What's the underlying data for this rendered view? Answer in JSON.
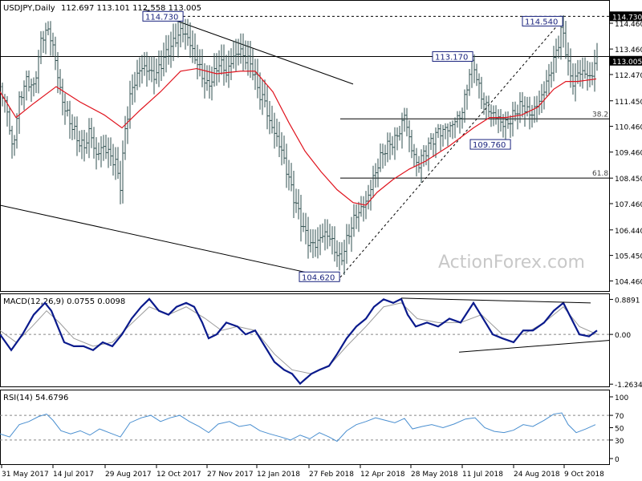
{
  "header": {
    "symbol": "USDJPY,Daily",
    "ohlc": "112.697 113.101 112.558 113.005"
  },
  "watermark": "ActionForex.com",
  "colors": {
    "bar": "#2f4f4f",
    "ema": "#e0141e",
    "macd": "#0a1a8c",
    "signal": "#9a9a9a",
    "rsi": "#4a8fd0",
    "label_border": "#1a237e",
    "axis": "#000000",
    "current_badge": "#000000"
  },
  "chart_data": [
    {
      "type": "ohlc",
      "name": "price",
      "y_axis_ticks": [
        "114.460",
        "113.460",
        "112.470",
        "111.450",
        "110.460",
        "109.460",
        "108.450",
        "107.460",
        "106.440",
        "105.450",
        "104.460"
      ],
      "ylim": [
        104.1,
        115.3
      ],
      "badges": {
        "top": "114.730",
        "current": "113.005"
      },
      "level_labels": [
        "114.730",
        "113.170",
        "114.540",
        "109.760",
        "104.620"
      ],
      "fib_labels": [
        "38.2",
        "61.8"
      ],
      "path": [
        [
          0,
          112.0
        ],
        [
          8,
          111.2
        ],
        [
          16,
          109.5
        ],
        [
          24,
          111.5
        ],
        [
          34,
          112.3
        ],
        [
          42,
          111.9
        ],
        [
          50,
          113.6
        ],
        [
          58,
          114.3
        ],
        [
          66,
          113.6
        ],
        [
          74,
          112.0
        ],
        [
          80,
          111.2
        ],
        [
          88,
          110.6
        ],
        [
          96,
          110.0
        ],
        [
          104,
          109.6
        ],
        [
          112,
          110.3
        ],
        [
          120,
          109.3
        ],
        [
          128,
          109.7
        ],
        [
          136,
          109.4
        ],
        [
          144,
          109.0
        ],
        [
          150,
          108.2
        ],
        [
          156,
          110.3
        ],
        [
          162,
          111.6
        ],
        [
          170,
          112.4
        ],
        [
          178,
          112.8
        ],
        [
          186,
          112.6
        ],
        [
          194,
          112.4
        ],
        [
          202,
          113.0
        ],
        [
          210,
          113.4
        ],
        [
          218,
          113.8
        ],
        [
          226,
          114.2
        ],
        [
          234,
          113.9
        ],
        [
          242,
          113.2
        ],
        [
          250,
          112.6
        ],
        [
          258,
          112.0
        ],
        [
          266,
          112.4
        ],
        [
          274,
          113.0
        ],
        [
          282,
          112.5
        ],
        [
          290,
          113.1
        ],
        [
          298,
          113.4
        ],
        [
          306,
          113.1
        ],
        [
          314,
          112.8
        ],
        [
          322,
          111.8
        ],
        [
          330,
          111.4
        ],
        [
          336,
          110.6
        ],
        [
          344,
          110.1
        ],
        [
          352,
          109.4
        ],
        [
          360,
          108.4
        ],
        [
          368,
          107.5
        ],
        [
          376,
          106.7
        ],
        [
          384,
          106.0
        ],
        [
          392,
          105.8
        ],
        [
          400,
          106.2
        ],
        [
          408,
          106.3
        ],
        [
          416,
          105.8
        ],
        [
          424,
          105.2
        ],
        [
          432,
          106.0
        ],
        [
          440,
          106.8
        ],
        [
          448,
          107.2
        ],
        [
          456,
          107.5
        ],
        [
          464,
          108.3
        ],
        [
          472,
          109.1
        ],
        [
          480,
          109.6
        ],
        [
          488,
          109.8
        ],
        [
          496,
          110.1
        ],
        [
          504,
          110.9
        ],
        [
          512,
          109.7
        ],
        [
          520,
          108.9
        ],
        [
          528,
          109.4
        ],
        [
          536,
          109.8
        ],
        [
          544,
          110.2
        ],
        [
          552,
          110.3
        ],
        [
          560,
          110.4
        ],
        [
          568,
          110.7
        ],
        [
          576,
          111.0
        ],
        [
          584,
          112.4
        ],
        [
          590,
          113.0
        ],
        [
          596,
          112.0
        ],
        [
          604,
          111.3
        ],
        [
          612,
          111.0
        ],
        [
          620,
          110.8
        ],
        [
          628,
          110.5
        ],
        [
          636,
          110.7
        ],
        [
          644,
          111.1
        ],
        [
          652,
          111.3
        ],
        [
          660,
          110.9
        ],
        [
          668,
          111.2
        ],
        [
          676,
          111.7
        ],
        [
          684,
          112.4
        ],
        [
          692,
          113.2
        ],
        [
          700,
          114.3
        ],
        [
          706,
          113.3
        ],
        [
          712,
          112.1
        ],
        [
          718,
          112.4
        ],
        [
          724,
          112.6
        ],
        [
          730,
          112.5
        ],
        [
          736,
          112.3
        ],
        [
          742,
          113.0
        ]
      ],
      "ema_path": [
        [
          0,
          111.8
        ],
        [
          20,
          110.8
        ],
        [
          40,
          111.3
        ],
        [
          70,
          112.0
        ],
        [
          100,
          111.4
        ],
        [
          130,
          110.9
        ],
        [
          152,
          110.4
        ],
        [
          175,
          111.1
        ],
        [
          200,
          111.8
        ],
        [
          225,
          112.6
        ],
        [
          245,
          112.7
        ],
        [
          270,
          112.5
        ],
        [
          300,
          112.6
        ],
        [
          318,
          112.6
        ],
        [
          340,
          111.8
        ],
        [
          360,
          110.6
        ],
        [
          380,
          109.5
        ],
        [
          400,
          108.7
        ],
        [
          420,
          108.0
        ],
        [
          440,
          107.5
        ],
        [
          456,
          107.4
        ],
        [
          470,
          107.9
        ],
        [
          490,
          108.4
        ],
        [
          510,
          108.8
        ],
        [
          530,
          109.1
        ],
        [
          560,
          109.7
        ],
        [
          590,
          110.4
        ],
        [
          610,
          110.8
        ],
        [
          630,
          110.8
        ],
        [
          650,
          110.9
        ],
        [
          670,
          111.2
        ],
        [
          690,
          111.9
        ],
        [
          705,
          112.2
        ],
        [
          720,
          112.2
        ],
        [
          743,
          112.3
        ]
      ],
      "lines": [
        {
          "kind": "trend",
          "from": [
            180,
            115.0
          ],
          "to": [
            440,
            112.1
          ]
        },
        {
          "kind": "trend",
          "from": [
            0,
            107.4
          ],
          "to": [
            424,
            104.5
          ]
        },
        {
          "kind": "trend-dashed",
          "from": [
            424,
            104.6
          ],
          "to": [
            698,
            114.5
          ]
        },
        {
          "kind": "horizontal-dashed",
          "y": 114.73,
          "from": 180,
          "to": 760
        },
        {
          "kind": "horizontal",
          "y": 113.17,
          "from": 0,
          "to": 760
        },
        {
          "kind": "horizontal",
          "y": 110.75,
          "from": 424,
          "to": 760
        },
        {
          "kind": "horizontal",
          "y": 108.45,
          "from": 424,
          "to": 760
        }
      ]
    },
    {
      "type": "line",
      "name": "macd",
      "title": "MACD(12,26,9) 0.0755 0.0098",
      "y_axis_ticks": [
        "0.8891",
        "0.00",
        "-1.2634"
      ],
      "ylim": [
        -1.3,
        1.0
      ],
      "macd_path": [
        [
          0,
          0.0
        ],
        [
          14,
          -0.4
        ],
        [
          28,
          0.0
        ],
        [
          42,
          0.5
        ],
        [
          56,
          0.8
        ],
        [
          64,
          0.6
        ],
        [
          72,
          0.2
        ],
        [
          80,
          -0.2
        ],
        [
          92,
          -0.3
        ],
        [
          104,
          -0.3
        ],
        [
          116,
          -0.4
        ],
        [
          128,
          -0.2
        ],
        [
          140,
          -0.3
        ],
        [
          152,
          0.0
        ],
        [
          164,
          0.4
        ],
        [
          176,
          0.7
        ],
        [
          186,
          0.9
        ],
        [
          198,
          0.6
        ],
        [
          210,
          0.5
        ],
        [
          220,
          0.7
        ],
        [
          232,
          0.8
        ],
        [
          242,
          0.7
        ],
        [
          252,
          0.3
        ],
        [
          260,
          -0.1
        ],
        [
          270,
          0.0
        ],
        [
          282,
          0.3
        ],
        [
          296,
          0.2
        ],
        [
          306,
          0.0
        ],
        [
          318,
          0.1
        ],
        [
          330,
          -0.3
        ],
        [
          342,
          -0.7
        ],
        [
          354,
          -0.9
        ],
        [
          364,
          -1.0
        ],
        [
          374,
          -1.25
        ],
        [
          388,
          -1.0
        ],
        [
          398,
          -0.9
        ],
        [
          410,
          -0.8
        ],
        [
          420,
          -0.5
        ],
        [
          432,
          -0.1
        ],
        [
          444,
          0.2
        ],
        [
          456,
          0.4
        ],
        [
          466,
          0.7
        ],
        [
          478,
          0.89
        ],
        [
          490,
          0.8
        ],
        [
          500,
          0.9
        ],
        [
          508,
          0.5
        ],
        [
          518,
          0.2
        ],
        [
          532,
          0.3
        ],
        [
          546,
          0.2
        ],
        [
          560,
          0.4
        ],
        [
          574,
          0.3
        ],
        [
          590,
          0.8
        ],
        [
          602,
          0.4
        ],
        [
          614,
          0.0
        ],
        [
          626,
          -0.1
        ],
        [
          640,
          -0.2
        ],
        [
          652,
          0.1
        ],
        [
          664,
          0.1
        ],
        [
          678,
          0.3
        ],
        [
          690,
          0.6
        ],
        [
          702,
          0.8
        ],
        [
          712,
          0.4
        ],
        [
          722,
          0.0
        ],
        [
          734,
          -0.05
        ],
        [
          744,
          0.1
        ]
      ],
      "signal_path": [
        [
          0,
          0.1
        ],
        [
          20,
          -0.2
        ],
        [
          40,
          0.2
        ],
        [
          58,
          0.6
        ],
        [
          74,
          0.3
        ],
        [
          92,
          -0.1
        ],
        [
          116,
          -0.3
        ],
        [
          140,
          -0.2
        ],
        [
          160,
          0.2
        ],
        [
          186,
          0.7
        ],
        [
          210,
          0.5
        ],
        [
          232,
          0.7
        ],
        [
          256,
          0.4
        ],
        [
          276,
          0.1
        ],
        [
          296,
          0.2
        ],
        [
          318,
          0.1
        ],
        [
          342,
          -0.5
        ],
        [
          364,
          -0.9
        ],
        [
          388,
          -1.0
        ],
        [
          410,
          -0.8
        ],
        [
          432,
          -0.3
        ],
        [
          456,
          0.2
        ],
        [
          478,
          0.7
        ],
        [
          500,
          0.8
        ],
        [
          520,
          0.4
        ],
        [
          546,
          0.3
        ],
        [
          574,
          0.3
        ],
        [
          600,
          0.5
        ],
        [
          626,
          0.0
        ],
        [
          652,
          0.0
        ],
        [
          678,
          0.3
        ],
        [
          702,
          0.7
        ],
        [
          722,
          0.2
        ],
        [
          744,
          0.0
        ]
      ],
      "lines": [
        {
          "from": [
            500,
            0.92
          ],
          "to": [
            736,
            0.8
          ]
        },
        {
          "from": [
            572,
            -0.45
          ],
          "to": [
            760,
            -0.15
          ]
        }
      ]
    },
    {
      "type": "line",
      "name": "rsi",
      "title": "RSI(14) 54.6796",
      "y_axis_ticks": [
        "100",
        "70",
        "50",
        "30",
        "0"
      ],
      "ylim": [
        0,
        100
      ],
      "path": [
        [
          0,
          40
        ],
        [
          12,
          35
        ],
        [
          24,
          55
        ],
        [
          36,
          60
        ],
        [
          48,
          68
        ],
        [
          58,
          72
        ],
        [
          66,
          62
        ],
        [
          76,
          45
        ],
        [
          88,
          40
        ],
        [
          100,
          45
        ],
        [
          112,
          38
        ],
        [
          124,
          48
        ],
        [
          136,
          42
        ],
        [
          150,
          35
        ],
        [
          162,
          58
        ],
        [
          176,
          66
        ],
        [
          188,
          70
        ],
        [
          200,
          60
        ],
        [
          212,
          66
        ],
        [
          224,
          70
        ],
        [
          236,
          60
        ],
        [
          248,
          52
        ],
        [
          260,
          42
        ],
        [
          272,
          56
        ],
        [
          286,
          60
        ],
        [
          298,
          52
        ],
        [
          312,
          55
        ],
        [
          324,
          45
        ],
        [
          336,
          40
        ],
        [
          350,
          35
        ],
        [
          362,
          30
        ],
        [
          374,
          38
        ],
        [
          386,
          32
        ],
        [
          398,
          42
        ],
        [
          410,
          35
        ],
        [
          420,
          28
        ],
        [
          432,
          45
        ],
        [
          444,
          55
        ],
        [
          456,
          60
        ],
        [
          468,
          66
        ],
        [
          480,
          62
        ],
        [
          492,
          58
        ],
        [
          504,
          65
        ],
        [
          514,
          48
        ],
        [
          526,
          52
        ],
        [
          538,
          55
        ],
        [
          552,
          50
        ],
        [
          566,
          56
        ],
        [
          580,
          64
        ],
        [
          592,
          66
        ],
        [
          604,
          50
        ],
        [
          616,
          44
        ],
        [
          628,
          42
        ],
        [
          640,
          46
        ],
        [
          652,
          55
        ],
        [
          664,
          52
        ],
        [
          678,
          62
        ],
        [
          690,
          72
        ],
        [
          700,
          74
        ],
        [
          708,
          55
        ],
        [
          718,
          42
        ],
        [
          730,
          48
        ],
        [
          742,
          55
        ]
      ],
      "levels": [
        70,
        30
      ]
    }
  ],
  "x_axis_labels": [
    "31 May 2017",
    "14 Jul 2017",
    "29 Aug 2017",
    "12 Oct 2017",
    "27 Nov 2017",
    "12 Jan 2018",
    "27 Feb 2018",
    "12 Apr 2018",
    "28 May 2018",
    "11 Jul 2018",
    "24 Aug 2018",
    "9 Oct 2018"
  ]
}
